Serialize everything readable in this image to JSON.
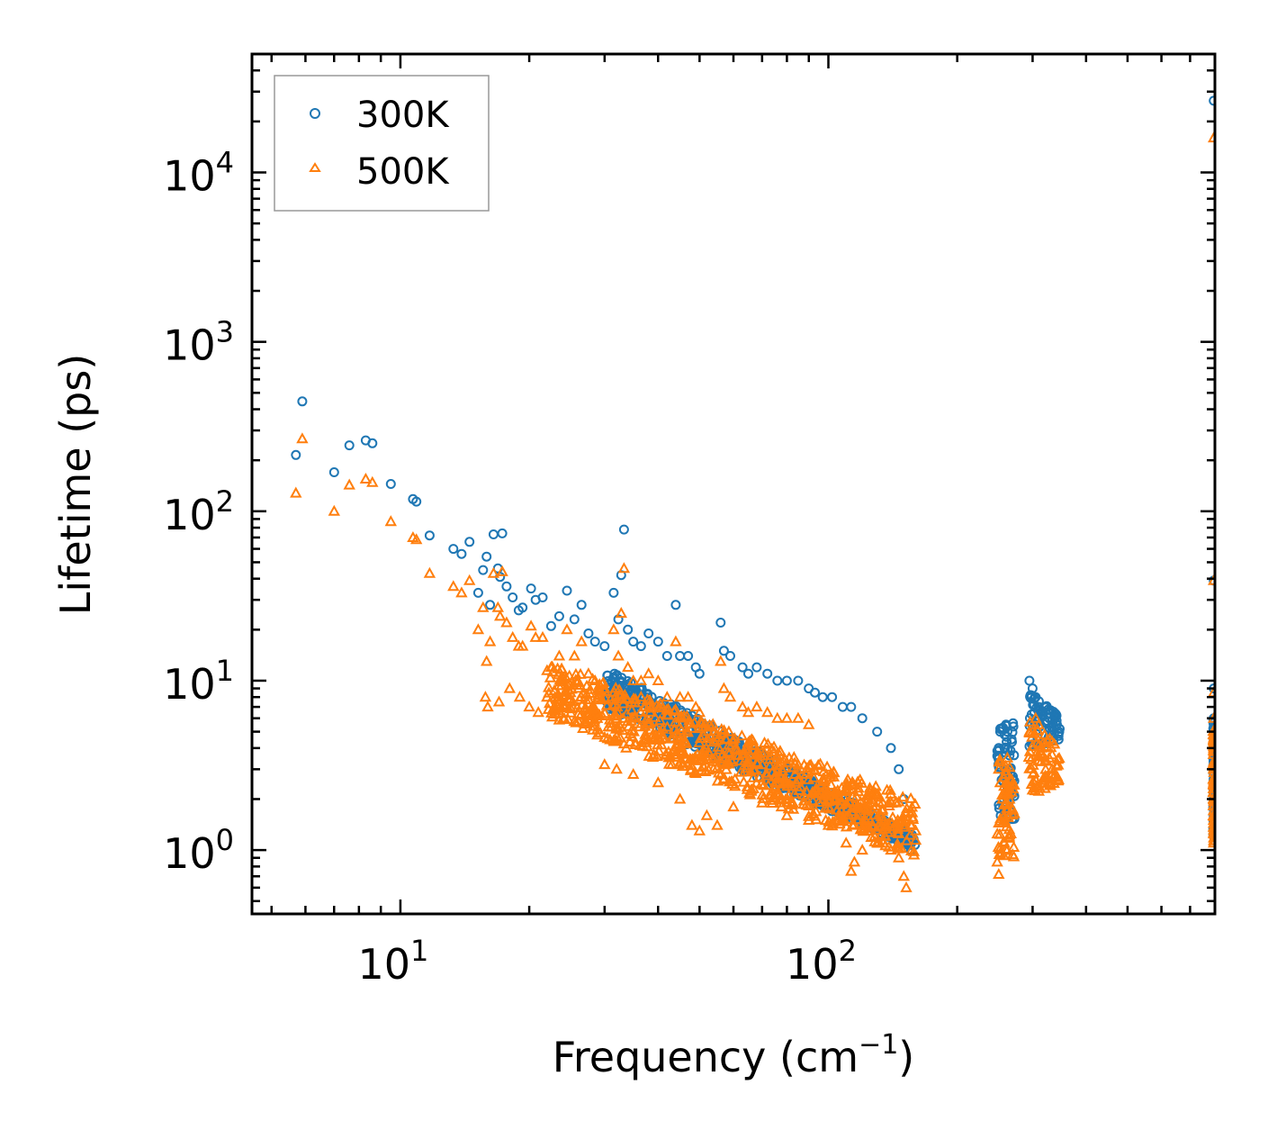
{
  "chart_data": {
    "type": "scatter",
    "title": "",
    "xlabel": "Frequency (cm",
    "xlabel_sup": "−1",
    "xlabel_tail": ")",
    "ylabel": "Lifetime (ps)",
    "xscale": "log",
    "yscale": "log",
    "xlim": [
      4.5,
      800
    ],
    "ylim": [
      0.42,
      50000
    ],
    "x_ticks": [
      {
        "base": "10",
        "exp": "1",
        "value": 10
      },
      {
        "base": "10",
        "exp": "2",
        "value": 100
      }
    ],
    "y_ticks": [
      {
        "base": "10",
        "exp": "0",
        "value": 1
      },
      {
        "base": "10",
        "exp": "1",
        "value": 10
      },
      {
        "base": "10",
        "exp": "2",
        "value": 100
      },
      {
        "base": "10",
        "exp": "3",
        "value": 1000
      },
      {
        "base": "10",
        "exp": "4",
        "value": 10000
      }
    ],
    "legend_position": "top-left",
    "series": [
      {
        "name": "300K",
        "marker": "circle",
        "color": "#1f77b4",
        "points": [
          [
            5.7,
            215
          ],
          [
            5.9,
            445
          ],
          [
            7,
            170
          ],
          [
            7.6,
            245
          ],
          [
            8.3,
            262
          ],
          [
            8.6,
            252
          ],
          [
            9.5,
            145
          ],
          [
            10.7,
            118
          ],
          [
            10.9,
            114
          ],
          [
            11.7,
            72
          ],
          [
            13.3,
            60
          ],
          [
            13.9,
            56
          ],
          [
            14.5,
            66
          ],
          [
            15.2,
            33
          ],
          [
            15.6,
            45
          ],
          [
            15.9,
            54
          ],
          [
            16.2,
            28
          ],
          [
            16.5,
            73
          ],
          [
            16.9,
            46
          ],
          [
            17.3,
            74
          ],
          [
            17.1,
            41
          ],
          [
            17.7,
            36
          ],
          [
            18.3,
            31
          ],
          [
            18.9,
            26
          ],
          [
            19.3,
            27
          ],
          [
            20.2,
            35
          ],
          [
            20.7,
            30
          ],
          [
            21.5,
            31
          ],
          [
            22.5,
            21
          ],
          [
            23.5,
            24
          ],
          [
            24.5,
            34
          ],
          [
            25.5,
            23
          ],
          [
            26.5,
            28
          ],
          [
            27.5,
            19
          ],
          [
            28.5,
            17
          ],
          [
            30,
            16
          ],
          [
            31.5,
            33
          ],
          [
            32.3,
            23
          ],
          [
            32.8,
            42
          ],
          [
            33.3,
            78
          ],
          [
            34,
            20
          ],
          [
            35,
            17
          ],
          [
            36.5,
            16
          ],
          [
            38,
            19
          ],
          [
            40,
            17
          ],
          [
            42,
            14
          ],
          [
            44,
            28
          ],
          [
            45,
            14
          ],
          [
            47,
            14
          ],
          [
            49,
            12
          ],
          [
            50,
            11
          ],
          [
            56,
            22
          ],
          [
            57,
            15
          ],
          [
            59,
            14
          ],
          [
            63,
            12
          ],
          [
            65,
            11
          ],
          [
            68,
            12
          ],
          [
            72,
            11
          ],
          [
            76,
            10
          ],
          [
            80,
            10
          ],
          [
            85,
            10
          ],
          [
            90,
            9
          ],
          [
            93,
            8.5
          ],
          [
            97,
            8
          ],
          [
            102,
            8
          ],
          [
            108,
            7
          ],
          [
            113,
            7
          ],
          [
            120,
            6
          ],
          [
            130,
            5
          ],
          [
            140,
            4
          ],
          [
            146,
            3
          ],
          [
            150,
            2
          ],
          [
            152,
            1.5
          ],
          [
            155,
            1.2
          ],
          [
            156,
            1
          ],
          [
            250,
            4
          ],
          [
            252,
            5
          ],
          [
            255,
            5.2
          ],
          [
            258,
            4.8
          ],
          [
            260,
            5.5
          ],
          [
            262,
            5
          ],
          [
            265,
            3
          ],
          [
            268,
            4.5
          ],
          [
            270,
            5.6
          ],
          [
            295,
            10
          ],
          [
            300,
            9
          ],
          [
            305,
            8
          ],
          [
            310,
            7
          ],
          [
            315,
            6.5
          ],
          [
            320,
            7
          ],
          [
            328,
            6
          ],
          [
            333,
            5.8
          ],
          [
            338,
            6
          ],
          [
            342,
            5.5
          ],
          [
            345,
            4.5
          ],
          [
            795,
            26500
          ],
          [
            795,
            39
          ],
          [
            795,
            9
          ],
          [
            795,
            6
          ],
          [
            795,
            5
          ],
          [
            795,
            3
          ],
          [
            795,
            2
          ],
          [
            795,
            1.5
          ]
        ],
        "dense_bands": [
          {
            "x": [
              30,
              160
            ],
            "y_top": [
              12,
              1.2
            ],
            "y_bottom": [
              7,
              1.0
            ]
          },
          {
            "x": [
              248,
              272
            ],
            "y_top": [
              5.5,
              5.5
            ],
            "y_bottom": [
              1.5,
              1.5
            ]
          },
          {
            "x": [
              293,
              348
            ],
            "y_top": [
              9.5,
              6
            ],
            "y_bottom": [
              4,
              4.5
            ]
          },
          {
            "x": [
              793,
              797
            ],
            "y_top": [
              6,
              6
            ],
            "y_bottom": [
              1.2,
              1.2
            ]
          }
        ]
      },
      {
        "name": "500K",
        "marker": "triangle",
        "color": "#ff7f0e",
        "points": [
          [
            5.7,
            128
          ],
          [
            5.9,
            268
          ],
          [
            7,
            100
          ],
          [
            7.6,
            143
          ],
          [
            8.3,
            155
          ],
          [
            8.6,
            148
          ],
          [
            9.5,
            87
          ],
          [
            10.7,
            70
          ],
          [
            10.9,
            68
          ],
          [
            11.7,
            43
          ],
          [
            13.3,
            36
          ],
          [
            13.9,
            33
          ],
          [
            14.5,
            39
          ],
          [
            15.2,
            20
          ],
          [
            15.6,
            27
          ],
          [
            15.9,
            13
          ],
          [
            16.2,
            17
          ],
          [
            16.5,
            43
          ],
          [
            16.9,
            27
          ],
          [
            17.3,
            44
          ],
          [
            17.1,
            24
          ],
          [
            17.7,
            22
          ],
          [
            18.3,
            18
          ],
          [
            18.9,
            16
          ],
          [
            19.3,
            16
          ],
          [
            20.2,
            21
          ],
          [
            20.7,
            18
          ],
          [
            21.5,
            18
          ],
          [
            22.5,
            12
          ],
          [
            23.5,
            14
          ],
          [
            15.8,
            8
          ],
          [
            16,
            7
          ],
          [
            17,
            7.5
          ],
          [
            18,
            9
          ],
          [
            19,
            8
          ],
          [
            20,
            7
          ],
          [
            21,
            6.5
          ],
          [
            22,
            8
          ],
          [
            23,
            7
          ],
          [
            24,
            6
          ],
          [
            24.5,
            20
          ],
          [
            25.5,
            14
          ],
          [
            26.5,
            17
          ],
          [
            27.5,
            11
          ],
          [
            28.5,
            10
          ],
          [
            30,
            9
          ],
          [
            31.5,
            20
          ],
          [
            32.3,
            14
          ],
          [
            32.8,
            25
          ],
          [
            33.3,
            46
          ],
          [
            34,
            12
          ],
          [
            35,
            10
          ],
          [
            36.5,
            10
          ],
          [
            38,
            11
          ],
          [
            40,
            10
          ],
          [
            42,
            8
          ],
          [
            44,
            17
          ],
          [
            45,
            8
          ],
          [
            47,
            8
          ],
          [
            49,
            7
          ],
          [
            50,
            6.5
          ],
          [
            56,
            13
          ],
          [
            57,
            9
          ],
          [
            59,
            8
          ],
          [
            63,
            7
          ],
          [
            65,
            6.5
          ],
          [
            68,
            7
          ],
          [
            72,
            6.5
          ],
          [
            76,
            6
          ],
          [
            80,
            6
          ],
          [
            85,
            6
          ],
          [
            90,
            5.5
          ],
          [
            30,
            3.2
          ],
          [
            32,
            3
          ],
          [
            35,
            2.8
          ],
          [
            40,
            2.5
          ],
          [
            45,
            2
          ],
          [
            48,
            1.4
          ],
          [
            50,
            1.3
          ],
          [
            52,
            1.6
          ],
          [
            55,
            1.4
          ],
          [
            60,
            1.8
          ],
          [
            70,
            1.9
          ],
          [
            80,
            1.6
          ],
          [
            90,
            1.5
          ],
          [
            100,
            1.4
          ],
          [
            110,
            1.1
          ],
          [
            113,
            0.75
          ],
          [
            115,
            0.85
          ],
          [
            120,
            1
          ],
          [
            130,
            1.1
          ],
          [
            140,
            1
          ],
          [
            146,
            0.9
          ],
          [
            150,
            0.7
          ],
          [
            152,
            0.6
          ],
          [
            250,
            3
          ],
          [
            252,
            2.5
          ],
          [
            255,
            2
          ],
          [
            258,
            1.5
          ],
          [
            260,
            2.8
          ],
          [
            262,
            3.5
          ],
          [
            265,
            2
          ],
          [
            268,
            2.2
          ],
          [
            270,
            2.3
          ],
          [
            248,
            0.85
          ],
          [
            250,
            0.72
          ],
          [
            252,
            0.95
          ],
          [
            295,
            5
          ],
          [
            300,
            5
          ],
          [
            305,
            6
          ],
          [
            310,
            5.5
          ],
          [
            315,
            4
          ],
          [
            320,
            2.5
          ],
          [
            328,
            3.5
          ],
          [
            333,
            3
          ],
          [
            338,
            2.8
          ],
          [
            342,
            3.2
          ],
          [
            345,
            2.6
          ],
          [
            795,
            16000
          ],
          [
            795,
            39
          ],
          [
            795,
            8.5
          ],
          [
            795,
            6
          ],
          [
            795,
            4
          ],
          [
            795,
            2.5
          ],
          [
            795,
            1.5
          ],
          [
            795,
            1.1
          ]
        ],
        "dense_bands": [
          {
            "x": [
              22,
              160
            ],
            "y_top": [
              13,
              2
            ],
            "y_bottom": [
              6,
              0.9
            ]
          },
          {
            "x": [
              248,
              272
            ],
            "y_top": [
              3.5,
              3.5
            ],
            "y_bottom": [
              0.9,
              0.9
            ]
          },
          {
            "x": [
              293,
              348
            ],
            "y_top": [
              6,
              4
            ],
            "y_bottom": [
              2,
              2.5
            ]
          },
          {
            "x": [
              793,
              797
            ],
            "y_top": [
              5.5,
              5.5
            ],
            "y_bottom": [
              1.1,
              1.1
            ]
          }
        ]
      }
    ]
  }
}
